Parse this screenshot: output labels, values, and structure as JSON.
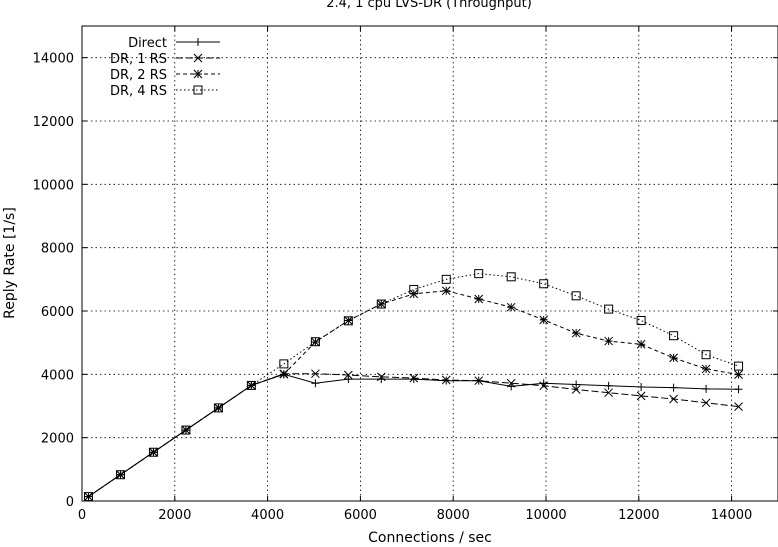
{
  "chart_data": {
    "type": "line",
    "title": "2.4, 1 cpu LVS-DR (Throughput)",
    "xlabel": "Connections / sec",
    "ylabel": "Reply Rate [1/s]",
    "xlim": [
      0,
      15000
    ],
    "ylim": [
      0,
      15000
    ],
    "xticks": [
      0,
      2000,
      4000,
      6000,
      8000,
      10000,
      12000,
      14000
    ],
    "yticks": [
      0,
      2000,
      4000,
      6000,
      8000,
      10000,
      12000,
      14000
    ],
    "grid": true,
    "legend_position": "top-left",
    "series": [
      {
        "name": "Direct",
        "marker": "plus",
        "dash": "",
        "x": [
          140,
          830,
          1540,
          2240,
          2940,
          3650,
          4350,
          5030,
          5740,
          6450,
          7150,
          7850,
          8550,
          9250,
          9950,
          10650,
          11350,
          12050,
          12750,
          13450,
          14150
        ],
        "y": [
          140,
          830,
          1540,
          2240,
          2940,
          3650,
          4000,
          3720,
          3850,
          3850,
          3850,
          3800,
          3800,
          3620,
          3720,
          3680,
          3640,
          3600,
          3580,
          3540,
          3530
        ]
      },
      {
        "name": "DR, 1 RS",
        "marker": "cross",
        "dash": "7 3",
        "x": [
          140,
          830,
          1540,
          2240,
          2940,
          3650,
          4350,
          5030,
          5740,
          6450,
          7150,
          7850,
          8550,
          9250,
          9950,
          10650,
          11350,
          12050,
          12750,
          13450,
          14150
        ],
        "y": [
          140,
          830,
          1540,
          2240,
          2940,
          3650,
          4020,
          4020,
          3980,
          3920,
          3880,
          3820,
          3800,
          3720,
          3640,
          3520,
          3420,
          3320,
          3220,
          3100,
          2980
        ]
      },
      {
        "name": "DR, 2 RS",
        "marker": "star",
        "dash": "4 3",
        "x": [
          140,
          830,
          1540,
          2240,
          2940,
          3650,
          4350,
          5030,
          5740,
          6450,
          7150,
          7850,
          8550,
          9250,
          9950,
          10650,
          11350,
          12050,
          12750,
          13450,
          14150
        ],
        "y": [
          140,
          830,
          1540,
          2240,
          2940,
          3650,
          4000,
          5020,
          5700,
          6220,
          6540,
          6640,
          6380,
          6120,
          5720,
          5300,
          5050,
          4950,
          4520,
          4170,
          3990
        ]
      },
      {
        "name": "DR, 4 RS",
        "marker": "square",
        "dash": "1.5 2.5",
        "x": [
          140,
          830,
          1540,
          2240,
          2940,
          3650,
          4350,
          5030,
          5740,
          6450,
          7150,
          7850,
          8550,
          9250,
          9950,
          10650,
          11350,
          12050,
          12750,
          13450,
          14150
        ],
        "y": [
          140,
          830,
          1540,
          2240,
          2940,
          3650,
          4330,
          5030,
          5690,
          6220,
          6680,
          7000,
          7180,
          7080,
          6860,
          6480,
          6060,
          5700,
          5220,
          4620,
          4260
        ]
      }
    ]
  }
}
